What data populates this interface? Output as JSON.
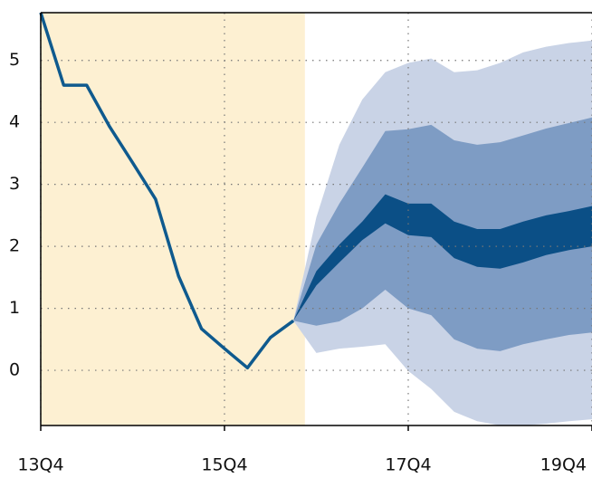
{
  "chart_data": {
    "type": "fan",
    "xlim": [
      0,
      24
    ],
    "ylim": [
      -0.89,
      5.77
    ],
    "xticks": [
      {
        "value": 0,
        "label": "13Q4"
      },
      {
        "value": 8,
        "label": "15Q4"
      },
      {
        "value": 16,
        "label": "17Q4"
      },
      {
        "value": 24,
        "label": "19Q4"
      }
    ],
    "yticks": [
      0,
      1,
      2,
      3,
      4,
      5
    ],
    "grid": true,
    "shaded_span": {
      "range": [
        0,
        11.5
      ],
      "color": "#fdf0d2"
    },
    "history": {
      "color": "#0f5a8e",
      "x": [
        0,
        1,
        2,
        3,
        4,
        5,
        6,
        7,
        8,
        9,
        10,
        11
      ],
      "values": [
        5.77,
        4.6,
        4.6,
        3.93,
        3.35,
        2.76,
        1.52,
        0.67,
        0.35,
        0.04,
        0.53,
        0.8
      ]
    },
    "fan_x": [
      11,
      12,
      13,
      14,
      15,
      16,
      17,
      18,
      19,
      20,
      21,
      22,
      23,
      24
    ],
    "bands": [
      {
        "color": "#c9d3e6",
        "upper": [
          0.8,
          2.47,
          3.64,
          4.37,
          4.81,
          4.96,
          5.03,
          4.81,
          4.84,
          4.96,
          5.13,
          5.22,
          5.28,
          5.32
        ],
        "lower": [
          0.8,
          0.28,
          0.35,
          0.38,
          0.42,
          -0.01,
          -0.3,
          -0.67,
          -0.82,
          -0.89,
          -0.89,
          -0.86,
          -0.82,
          -0.79
        ]
      },
      {
        "color": "#7e9cc4",
        "upper": [
          0.8,
          2.03,
          2.69,
          3.27,
          3.86,
          3.89,
          3.96,
          3.71,
          3.64,
          3.68,
          3.79,
          3.9,
          3.99,
          4.08
        ],
        "lower": [
          0.8,
          0.72,
          0.79,
          1.0,
          1.3,
          1.0,
          0.89,
          0.5,
          0.35,
          0.31,
          0.42,
          0.5,
          0.57,
          0.61
        ]
      },
      {
        "color": "#0b4f86",
        "upper": [
          0.8,
          1.6,
          2.03,
          2.4,
          2.84,
          2.69,
          2.69,
          2.4,
          2.28,
          2.28,
          2.4,
          2.5,
          2.57,
          2.65
        ],
        "lower": [
          0.8,
          1.37,
          1.74,
          2.1,
          2.37,
          2.18,
          2.15,
          1.81,
          1.67,
          1.64,
          1.74,
          1.86,
          1.94,
          2.0
        ]
      }
    ]
  }
}
